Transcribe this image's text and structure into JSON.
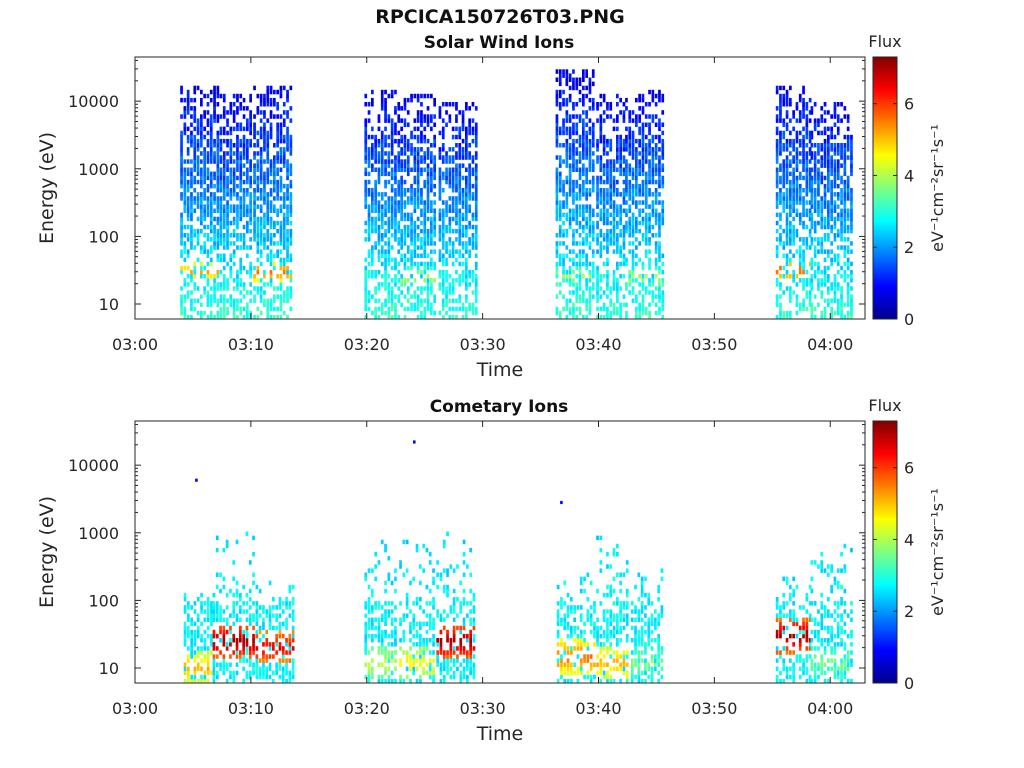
{
  "figure": {
    "title": "RPCICA150726T03.PNG"
  },
  "colors": {
    "axis": "#262626",
    "plot_background": "#ffffff"
  },
  "chart_data": [
    {
      "type": "heatmap",
      "title": "Solar Wind Ions",
      "xlabel": "Time",
      "ylabel": "Energy (eV)",
      "x_ticks": [
        "03:00",
        "03:10",
        "03:20",
        "03:30",
        "03:40",
        "03:50",
        "04:00"
      ],
      "xlim_minutes": [
        0,
        63
      ],
      "y_scale": "log",
      "y_ticks": [
        "10",
        "100",
        "1000",
        "10000"
      ],
      "ylim": [
        6,
        45000
      ],
      "colorbar": {
        "title": "Flux",
        "label": "eV⁻¹cm⁻²sr⁻¹s⁻¹",
        "ticks": [
          "0",
          "2",
          "4",
          "6"
        ],
        "range": [
          0,
          7.3
        ],
        "colormap": "jet"
      },
      "bursts": [
        {
          "start_min": 3.9,
          "end_min": 7.1,
          "emax": 18000,
          "peak_flux": 5.2,
          "peak_energy": 30
        },
        {
          "start_min": 7.3,
          "end_min": 10.0,
          "emax": 12000,
          "peak_flux": 3.0,
          "peak_energy": 25
        },
        {
          "start_min": 10.2,
          "end_min": 13.6,
          "emax": 18000,
          "peak_flux": 5.6,
          "peak_energy": 30
        },
        {
          "start_min": 19.8,
          "end_min": 22.8,
          "emax": 14000,
          "peak_flux": 3.0,
          "peak_energy": 25
        },
        {
          "start_min": 22.9,
          "end_min": 26.0,
          "emax": 12000,
          "peak_flux": 4.0,
          "peak_energy": 25
        },
        {
          "start_min": 26.2,
          "end_min": 29.4,
          "emax": 10000,
          "peak_flux": 3.0,
          "peak_energy": 25
        },
        {
          "start_min": 36.3,
          "end_min": 39.6,
          "emax": 28000,
          "peak_flux": 4.0,
          "peak_energy": 25
        },
        {
          "start_min": 39.8,
          "end_min": 42.1,
          "emax": 12000,
          "peak_flux": 3.0,
          "peak_energy": 25
        },
        {
          "start_min": 42.3,
          "end_min": 45.5,
          "emax": 15000,
          "peak_flux": 4.0,
          "peak_energy": 25
        },
        {
          "start_min": 55.3,
          "end_min": 58.2,
          "emax": 18000,
          "peak_flux": 5.8,
          "peak_energy": 32
        },
        {
          "start_min": 58.3,
          "end_min": 61.9,
          "emax": 10000,
          "peak_flux": 3.0,
          "peak_energy": 25
        }
      ]
    },
    {
      "type": "heatmap",
      "title": "Cometary Ions",
      "xlabel": "Time",
      "ylabel": "Energy (eV)",
      "x_ticks": [
        "03:00",
        "03:10",
        "03:20",
        "03:30",
        "03:40",
        "03:50",
        "04:00"
      ],
      "xlim_minutes": [
        0,
        63
      ],
      "y_scale": "log",
      "y_ticks": [
        "10",
        "100",
        "1000",
        "10000"
      ],
      "ylim": [
        6,
        45000
      ],
      "colorbar": {
        "title": "Flux",
        "label": "eV⁻¹cm⁻²sr⁻¹s⁻¹",
        "ticks": [
          "0",
          "2",
          "4",
          "6"
        ],
        "range": [
          0,
          7.3
        ],
        "colormap": "jet"
      },
      "bursts": [
        {
          "start_min": 4.2,
          "end_min": 6.6,
          "emax": 130,
          "peak_flux": 5.0,
          "peak_energy": 10
        },
        {
          "start_min": 6.7,
          "end_min": 10.2,
          "emax": 1000,
          "peak_flux": 7.0,
          "peak_energy": 25
        },
        {
          "start_min": 10.4,
          "end_min": 13.6,
          "emax": 200,
          "peak_flux": 6.5,
          "peak_energy": 20
        },
        {
          "start_min": 19.8,
          "end_min": 22.6,
          "emax": 1000,
          "peak_flux": 4.0,
          "peak_energy": 12
        },
        {
          "start_min": 22.8,
          "end_min": 25.8,
          "emax": 800,
          "peak_flux": 4.5,
          "peak_energy": 12
        },
        {
          "start_min": 26.0,
          "end_min": 29.4,
          "emax": 1000,
          "peak_flux": 7.0,
          "peak_energy": 25
        },
        {
          "start_min": 36.4,
          "end_min": 39.6,
          "emax": 250,
          "peak_flux": 5.5,
          "peak_energy": 15
        },
        {
          "start_min": 39.8,
          "end_min": 42.6,
          "emax": 1100,
          "peak_flux": 5.0,
          "peak_energy": 12
        },
        {
          "start_min": 42.8,
          "end_min": 45.6,
          "emax": 300,
          "peak_flux": 3.5,
          "peak_energy": 12
        },
        {
          "start_min": 55.3,
          "end_min": 58.2,
          "emax": 220,
          "peak_flux": 7.0,
          "peak_energy": 30
        },
        {
          "start_min": 58.3,
          "end_min": 61.9,
          "emax": 800,
          "peak_flux": 3.5,
          "peak_energy": 12
        }
      ],
      "isolated_points": [
        {
          "time_min": 5.3,
          "energy": 6000,
          "flux": 1.0
        },
        {
          "time_min": 24.1,
          "energy": 22000,
          "flux": 1.0
        },
        {
          "time_min": 36.8,
          "energy": 2800,
          "flux": 1.0
        }
      ]
    }
  ]
}
